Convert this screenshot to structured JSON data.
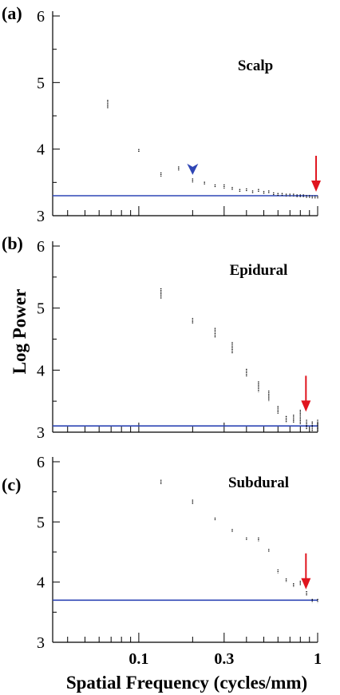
{
  "figure": {
    "ylabel": "Log Power",
    "xlabel": "Spatial Frequency (cycles/mm)",
    "x_tick_labels": [
      "0.1",
      "0.3",
      "1"
    ]
  },
  "colors": {
    "noise_floor": "#2f46b5",
    "arrow_red": "#e0141e",
    "arrow_blue": "#2f46b5",
    "data_marks": "#000000"
  },
  "chart_data": [
    {
      "type": "scatter",
      "panel_label": "(a)",
      "title": "Scalp",
      "xscale": "log",
      "xlim": [
        0.033,
        1.0
      ],
      "ylim": [
        3,
        6
      ],
      "y_tick_labels": [
        "3",
        "4",
        "5",
        "6"
      ],
      "noise_floor": 3.3,
      "points": [
        {
          "x": 0.067,
          "y_min": 4.61,
          "y_max": 4.74
        },
        {
          "x": 0.1,
          "y_min": 3.95,
          "y_max": 4.0
        },
        {
          "x": 0.133,
          "y_min": 3.59,
          "y_max": 3.65
        },
        {
          "x": 0.167,
          "y_min": 3.68,
          "y_max": 3.74
        },
        {
          "x": 0.2,
          "y_min": 3.5,
          "y_max": 3.56
        },
        {
          "x": 0.233,
          "y_min": 3.47,
          "y_max": 3.51
        },
        {
          "x": 0.267,
          "y_min": 3.42,
          "y_max": 3.47
        },
        {
          "x": 0.3,
          "y_min": 3.41,
          "y_max": 3.47
        },
        {
          "x": 0.333,
          "y_min": 3.39,
          "y_max": 3.43
        },
        {
          "x": 0.367,
          "y_min": 3.36,
          "y_max": 3.4
        },
        {
          "x": 0.4,
          "y_min": 3.36,
          "y_max": 3.41
        },
        {
          "x": 0.433,
          "y_min": 3.34,
          "y_max": 3.38
        },
        {
          "x": 0.467,
          "y_min": 3.35,
          "y_max": 3.4
        },
        {
          "x": 0.5,
          "y_min": 3.32,
          "y_max": 3.37
        },
        {
          "x": 0.533,
          "y_min": 3.33,
          "y_max": 3.38
        },
        {
          "x": 0.567,
          "y_min": 3.31,
          "y_max": 3.35
        },
        {
          "x": 0.6,
          "y_min": 3.3,
          "y_max": 3.34
        },
        {
          "x": 0.633,
          "y_min": 3.3,
          "y_max": 3.34
        },
        {
          "x": 0.667,
          "y_min": 3.29,
          "y_max": 3.33
        },
        {
          "x": 0.7,
          "y_min": 3.29,
          "y_max": 3.33
        },
        {
          "x": 0.733,
          "y_min": 3.28,
          "y_max": 3.33
        },
        {
          "x": 0.767,
          "y_min": 3.28,
          "y_max": 3.32
        },
        {
          "x": 0.8,
          "y_min": 3.27,
          "y_max": 3.32
        },
        {
          "x": 0.833,
          "y_min": 3.27,
          "y_max": 3.32
        },
        {
          "x": 0.867,
          "y_min": 3.27,
          "y_max": 3.31
        },
        {
          "x": 0.9,
          "y_min": 3.26,
          "y_max": 3.31
        },
        {
          "x": 0.933,
          "y_min": 3.26,
          "y_max": 3.3
        },
        {
          "x": 0.967,
          "y_min": 3.26,
          "y_max": 3.3
        },
        {
          "x": 1.0,
          "y_min": 3.26,
          "y_max": 3.3
        }
      ],
      "arrows": [
        {
          "color": "blue",
          "style": "arrowhead",
          "x": 0.2,
          "y": 3.71
        },
        {
          "color": "red",
          "style": "arrow",
          "x": 0.98,
          "y": 3.36
        }
      ]
    },
    {
      "type": "scatter",
      "panel_label": "(b)",
      "title": "Epidural",
      "xscale": "log",
      "xlim": [
        0.033,
        1.0
      ],
      "ylim": [
        3,
        6
      ],
      "y_tick_labels": [
        "3",
        "4",
        "5",
        "6"
      ],
      "noise_floor": 3.1,
      "points": [
        {
          "x": 0.133,
          "y_min": 5.15,
          "y_max": 5.32
        },
        {
          "x": 0.2,
          "y_min": 4.75,
          "y_max": 4.84
        },
        {
          "x": 0.267,
          "y_min": 4.52,
          "y_max": 4.68
        },
        {
          "x": 0.333,
          "y_min": 4.27,
          "y_max": 4.45
        },
        {
          "x": 0.4,
          "y_min": 3.9,
          "y_max": 4.02
        },
        {
          "x": 0.467,
          "y_min": 3.65,
          "y_max": 3.82
        },
        {
          "x": 0.533,
          "y_min": 3.5,
          "y_max": 3.67
        },
        {
          "x": 0.6,
          "y_min": 3.3,
          "y_max": 3.42
        },
        {
          "x": 0.667,
          "y_min": 3.15,
          "y_max": 3.26
        },
        {
          "x": 0.733,
          "y_min": 3.15,
          "y_max": 3.28
        },
        {
          "x": 0.8,
          "y_min": 3.12,
          "y_max": 3.36
        },
        {
          "x": 0.867,
          "y_min": 3.05,
          "y_max": 3.2
        },
        {
          "x": 0.933,
          "y_min": 3.02,
          "y_max": 3.17
        },
        {
          "x": 1.0,
          "y_min": 3.02,
          "y_max": 3.2
        }
      ],
      "arrows": [
        {
          "color": "red",
          "style": "arrow",
          "x": 0.86,
          "y": 3.33
        }
      ]
    },
    {
      "type": "scatter",
      "panel_label": "(c)",
      "title": "Subdural",
      "xscale": "log",
      "xlim": [
        0.033,
        1.0
      ],
      "ylim": [
        3,
        6
      ],
      "y_tick_labels": [
        "3",
        "4",
        "5",
        "6"
      ],
      "noise_floor": 3.7,
      "points": [
        {
          "x": 0.133,
          "y_min": 5.63,
          "y_max": 5.7
        },
        {
          "x": 0.2,
          "y_min": 5.3,
          "y_max": 5.37
        },
        {
          "x": 0.267,
          "y_min": 5.03,
          "y_max": 5.07
        },
        {
          "x": 0.333,
          "y_min": 4.83,
          "y_max": 4.88
        },
        {
          "x": 0.4,
          "y_min": 4.7,
          "y_max": 4.74
        },
        {
          "x": 0.467,
          "y_min": 4.68,
          "y_max": 4.74
        },
        {
          "x": 0.533,
          "y_min": 4.5,
          "y_max": 4.55
        },
        {
          "x": 0.6,
          "y_min": 4.15,
          "y_max": 4.21
        },
        {
          "x": 0.667,
          "y_min": 4.0,
          "y_max": 4.06
        },
        {
          "x": 0.733,
          "y_min": 3.92,
          "y_max": 3.98
        },
        {
          "x": 0.8,
          "y_min": 3.95,
          "y_max": 4.02
        },
        {
          "x": 0.867,
          "y_min": 3.78,
          "y_max": 3.85
        },
        {
          "x": 0.933,
          "y_min": 3.66,
          "y_max": 3.72
        },
        {
          "x": 1.0,
          "y_min": 3.66,
          "y_max": 3.72
        }
      ],
      "arrows": [
        {
          "color": "red",
          "style": "arrow",
          "x": 0.86,
          "y": 3.88
        }
      ]
    }
  ]
}
